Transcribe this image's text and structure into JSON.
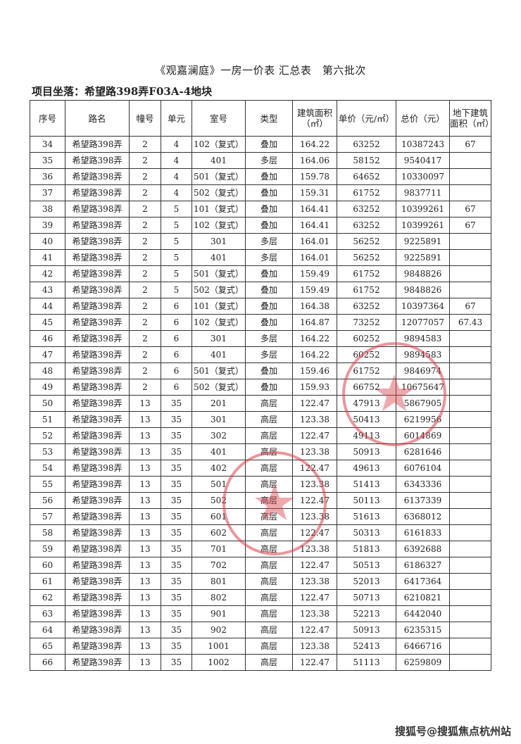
{
  "document": {
    "title": "《观嘉澜庭》一房一价表 汇总表　第六批次",
    "location": "项目坐落：希望路398弄F03A-4地块",
    "watermark": "搜狐号@搜狐焦点杭州站",
    "stamp_color": "#d9404a"
  },
  "table": {
    "headers": [
      "序号",
      "路名",
      "幢号",
      "单元",
      "室号",
      "类型",
      "建筑面积（㎡）",
      "单价（元/㎡）",
      "总价（元）",
      "地下建筑面积（㎡）"
    ],
    "rows": [
      [
        "34",
        "希望路398弄",
        "2",
        "4",
        "102（复式）",
        "叠加",
        "164.22",
        "63252",
        "10387243",
        "67"
      ],
      [
        "35",
        "希望路398弄",
        "2",
        "4",
        "401",
        "多层",
        "164.06",
        "58152",
        "9540417",
        ""
      ],
      [
        "36",
        "希望路398弄",
        "2",
        "4",
        "501（复式）",
        "叠加",
        "159.78",
        "64652",
        "10330097",
        ""
      ],
      [
        "37",
        "希望路398弄",
        "2",
        "4",
        "502（复式）",
        "叠加",
        "159.31",
        "61752",
        "9837711",
        ""
      ],
      [
        "38",
        "希望路398弄",
        "2",
        "5",
        "101（复式）",
        "叠加",
        "164.41",
        "63252",
        "10399261",
        "67"
      ],
      [
        "39",
        "希望路398弄",
        "2",
        "5",
        "102（复式）",
        "叠加",
        "164.41",
        "63252",
        "10399261",
        "67"
      ],
      [
        "40",
        "希望路398弄",
        "2",
        "5",
        "301",
        "多层",
        "164.01",
        "56252",
        "9225891",
        ""
      ],
      [
        "41",
        "希望路398弄",
        "2",
        "5",
        "401",
        "多层",
        "164.01",
        "56252",
        "9225891",
        ""
      ],
      [
        "42",
        "希望路398弄",
        "2",
        "5",
        "501（复式）",
        "叠加",
        "159.49",
        "61752",
        "9848826",
        ""
      ],
      [
        "43",
        "希望路398弄",
        "2",
        "5",
        "502（复式）",
        "叠加",
        "159.49",
        "61752",
        "9848826",
        ""
      ],
      [
        "44",
        "希望路398弄",
        "2",
        "6",
        "101（复式）",
        "叠加",
        "164.38",
        "63252",
        "10397364",
        "67"
      ],
      [
        "45",
        "希望路398弄",
        "2",
        "6",
        "102（复式）",
        "叠加",
        "164.87",
        "73252",
        "12077057",
        "67.43"
      ],
      [
        "46",
        "希望路398弄",
        "2",
        "6",
        "301",
        "多层",
        "164.22",
        "60252",
        "9894583",
        ""
      ],
      [
        "47",
        "希望路398弄",
        "2",
        "6",
        "401",
        "多层",
        "164.22",
        "60252",
        "9894583",
        ""
      ],
      [
        "48",
        "希望路398弄",
        "2",
        "6",
        "501（复式）",
        "叠加",
        "159.46",
        "61752",
        "9846974",
        ""
      ],
      [
        "49",
        "希望路398弄",
        "2",
        "6",
        "502（复式）",
        "叠加",
        "159.93",
        "66752",
        "10675647",
        ""
      ],
      [
        "50",
        "希望路398弄",
        "13",
        "35",
        "201",
        "高层",
        "122.47",
        "47913",
        "5867905",
        ""
      ],
      [
        "51",
        "希望路398弄",
        "13",
        "35",
        "301",
        "高层",
        "123.38",
        "50413",
        "6219956",
        ""
      ],
      [
        "52",
        "希望路398弄",
        "13",
        "35",
        "302",
        "高层",
        "122.47",
        "49113",
        "6014869",
        ""
      ],
      [
        "53",
        "希望路398弄",
        "13",
        "35",
        "401",
        "高层",
        "123.38",
        "50913",
        "6281646",
        ""
      ],
      [
        "54",
        "希望路398弄",
        "13",
        "35",
        "402",
        "高层",
        "122.47",
        "49613",
        "6076104",
        ""
      ],
      [
        "55",
        "希望路398弄",
        "13",
        "35",
        "501",
        "高层",
        "123.38",
        "51413",
        "6343336",
        ""
      ],
      [
        "56",
        "希望路398弄",
        "13",
        "35",
        "502",
        "高层",
        "122.47",
        "50113",
        "6137339",
        ""
      ],
      [
        "57",
        "希望路398弄",
        "13",
        "35",
        "601",
        "高层",
        "123.38",
        "51613",
        "6368012",
        ""
      ],
      [
        "58",
        "希望路398弄",
        "13",
        "35",
        "602",
        "高层",
        "122.47",
        "50313",
        "6161833",
        ""
      ],
      [
        "59",
        "希望路398弄",
        "13",
        "35",
        "701",
        "高层",
        "123.38",
        "51813",
        "6392688",
        ""
      ],
      [
        "60",
        "希望路398弄",
        "13",
        "35",
        "702",
        "高层",
        "122.47",
        "50513",
        "6186327",
        ""
      ],
      [
        "61",
        "希望路398弄",
        "13",
        "35",
        "801",
        "高层",
        "123.38",
        "52013",
        "6417364",
        ""
      ],
      [
        "62",
        "希望路398弄",
        "13",
        "35",
        "802",
        "高层",
        "122.47",
        "50713",
        "6210821",
        ""
      ],
      [
        "63",
        "希望路398弄",
        "13",
        "35",
        "901",
        "高层",
        "123.38",
        "52213",
        "6442040",
        ""
      ],
      [
        "64",
        "希望路398弄",
        "13",
        "35",
        "902",
        "高层",
        "122.47",
        "50913",
        "6235315",
        ""
      ],
      [
        "65",
        "希望路398弄",
        "13",
        "35",
        "1001",
        "高层",
        "123.38",
        "52413",
        "6466716",
        ""
      ],
      [
        "66",
        "希望路398弄",
        "13",
        "35",
        "1002",
        "高层",
        "122.47",
        "51113",
        "6259809",
        ""
      ]
    ]
  }
}
